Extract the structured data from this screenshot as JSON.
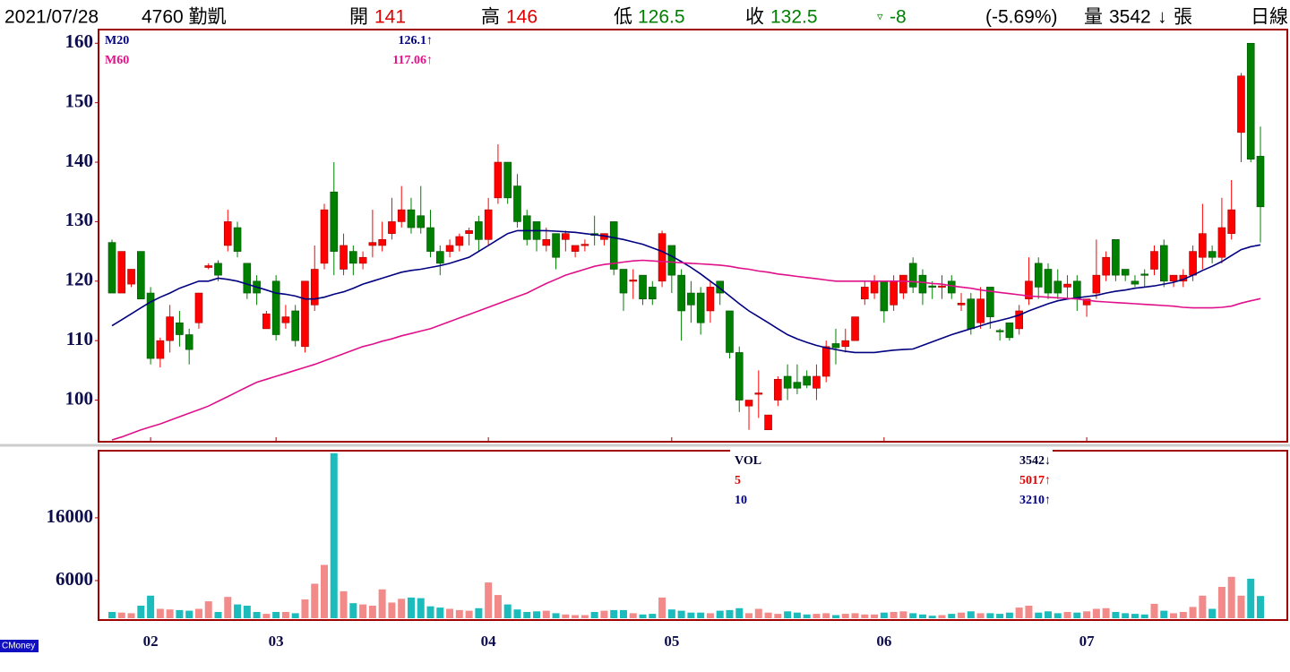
{
  "chart_data": {
    "type": "candlestick",
    "header": {
      "date": "2021/07/28",
      "stock": "4760 勤凱",
      "open_label": "開",
      "open": 141,
      "high_label": "高",
      "high": 146,
      "low_label": "低",
      "low": 126.5,
      "close_label": "收",
      "close": 132.5,
      "change_icon": "▿",
      "change": -8,
      "change_pct": "(-5.69%)",
      "volume_label": "量",
      "volume": 3542,
      "volume_arrow": "↓",
      "volume_unit": "張",
      "period": "日線"
    },
    "categories": [
      null,
      null,
      null,
      null,
      "02",
      null,
      null,
      null,
      null,
      null,
      null,
      null,
      null,
      null,
      null,
      null,
      null,
      "03",
      null,
      null,
      null,
      null,
      null,
      null,
      null,
      null,
      null,
      null,
      null,
      null,
      null,
      null,
      null,
      null,
      null,
      null,
      null,
      null,
      null,
      "04",
      null,
      null,
      null,
      null,
      null,
      null,
      null,
      null,
      null,
      null,
      null,
      null,
      null,
      null,
      null,
      null,
      null,
      null,
      "05",
      null,
      null,
      null,
      null,
      null,
      null,
      null,
      null,
      null,
      null,
      null,
      null,
      null,
      null,
      null,
      null,
      null,
      null,
      null,
      null,
      null,
      "06",
      null,
      null,
      null,
      null,
      null,
      null,
      null,
      null,
      null,
      null,
      null,
      null,
      null,
      null,
      null,
      null,
      null,
      null,
      null,
      null,
      "07",
      null,
      null,
      null,
      null,
      null,
      null,
      null,
      null,
      null,
      null,
      null,
      null,
      null,
      null,
      null,
      null,
      null,
      null
    ],
    "open": [
      126.5,
      118,
      119.5,
      125,
      118,
      107,
      110,
      113,
      111,
      113,
      122.3,
      123,
      126,
      129,
      123,
      120,
      112,
      120,
      113,
      115,
      109,
      116,
      123,
      135,
      122,
      125,
      123,
      126,
      126,
      128,
      130,
      132,
      131,
      129,
      125,
      125,
      126,
      128,
      130,
      127,
      134,
      140,
      136,
      131,
      130,
      126,
      128,
      127,
      125,
      126,
      128,
      127,
      130,
      122,
      120,
      121,
      119,
      120,
      126,
      121,
      118,
      118,
      115,
      120,
      115,
      108,
      99,
      101,
      95,
      100,
      104,
      103,
      104,
      102,
      104,
      109.5,
      109,
      110,
      117,
      118,
      120,
      116,
      118,
      123,
      121,
      119.2,
      119,
      120,
      116,
      117,
      113,
      119,
      111.7,
      113,
      112,
      117,
      123,
      122,
      120,
      119,
      120,
      116,
      118,
      121,
      127,
      122,
      120,
      121.2,
      122,
      126,
      120,
      120,
      121,
      124,
      125,
      124,
      128,
      145,
      160,
      141
    ],
    "high": [
      127,
      125,
      122,
      125,
      119,
      110.5,
      116,
      115,
      112,
      118,
      123,
      123.5,
      132,
      130,
      123,
      121,
      115,
      121,
      116,
      116,
      120,
      126,
      133,
      140,
      128,
      126,
      125,
      132,
      130,
      134,
      136,
      134,
      136,
      132,
      126,
      127,
      128,
      129,
      131,
      134,
      143,
      140,
      138,
      132,
      130,
      129,
      128,
      128.5,
      126,
      127,
      131,
      128,
      130,
      122,
      122,
      121,
      120,
      128.5,
      126,
      122,
      120,
      119,
      120,
      120,
      115,
      109,
      100,
      105,
      97.5,
      104,
      106,
      106,
      105,
      106,
      110,
      112,
      112,
      114,
      120,
      121,
      120,
      121,
      121,
      124,
      122,
      120,
      121,
      121,
      118,
      118,
      119,
      119,
      112,
      113,
      116,
      124,
      124,
      123,
      122,
      121,
      121,
      117,
      127,
      125,
      127,
      122,
      121,
      122,
      126,
      127,
      121,
      122,
      126,
      133,
      126,
      134,
      137,
      155,
      160,
      146
    ],
    "low": [
      118,
      118,
      119,
      117,
      106,
      105.5,
      108,
      109,
      106,
      112,
      122,
      120,
      125,
      124,
      117,
      116,
      112,
      110,
      112,
      109,
      108,
      115,
      122,
      121,
      121,
      121,
      122,
      124,
      125,
      127,
      129,
      128,
      128,
      124,
      121,
      124,
      125,
      126,
      125,
      126,
      133,
      133,
      129,
      126,
      125,
      125,
      122,
      125,
      124,
      125,
      126,
      126,
      121,
      115,
      117,
      116,
      116,
      119,
      118,
      110,
      113,
      111,
      113,
      116,
      107,
      98,
      95,
      97,
      95,
      99,
      100,
      101,
      102,
      100,
      103,
      106,
      108,
      110,
      116,
      117,
      113,
      115,
      117,
      118,
      116,
      117,
      117,
      117,
      115,
      111,
      112,
      112,
      110,
      110,
      111,
      116,
      117,
      117,
      117,
      117,
      115,
      114,
      117,
      120,
      120,
      120,
      119,
      119,
      121,
      119,
      119,
      119,
      120,
      122,
      123,
      123,
      127,
      140,
      140,
      126.5
    ],
    "close": [
      118,
      125,
      122,
      117,
      107,
      110,
      114,
      111,
      108.5,
      118,
      122.6,
      121,
      130,
      125,
      118,
      118,
      114.5,
      111,
      114,
      110,
      120,
      122,
      132,
      125,
      126,
      123,
      124,
      126.5,
      127,
      130,
      132,
      129,
      129,
      125,
      123,
      126,
      127.5,
      128.5,
      127,
      132,
      140,
      134,
      130,
      127,
      127,
      127,
      124,
      128,
      126,
      126.2,
      127.7,
      128,
      122,
      118,
      120.2,
      117,
      117,
      128,
      121,
      115,
      116,
      113,
      119,
      118,
      108,
      100,
      100,
      101.2,
      97.5,
      103.5,
      102,
      102,
      102.5,
      104,
      109,
      108.8,
      110,
      114,
      119,
      120,
      115,
      120,
      121,
      119,
      118,
      119,
      119.2,
      118,
      116.3,
      112,
      117,
      114,
      111.5,
      110.5,
      115,
      120,
      119,
      118,
      118,
      119.5,
      117,
      117,
      121,
      124,
      121,
      121,
      119.5,
      121,
      125,
      120,
      121,
      121,
      125,
      128,
      124,
      129,
      132,
      154.5,
      140.5,
      132.5
    ],
    "up_color": "#ff0000",
    "down_color": "#008000",
    "ylim": [
      93,
      162.3
    ],
    "yticks": [
      100,
      110,
      120,
      130,
      140,
      150,
      160
    ],
    "series": [
      {
        "name": "M20",
        "color": "#000080",
        "label": "126.1↑",
        "values": [
          112.5,
          113.5,
          114.5,
          115.5,
          116.5,
          117.3,
          118,
          118.8,
          119.4,
          120,
          120,
          120.5,
          120.3,
          120,
          119.5,
          119,
          118.5,
          118,
          117.8,
          117.5,
          117,
          117,
          117.3,
          117.8,
          118.2,
          118.8,
          119.5,
          120,
          120.5,
          121,
          121.5,
          121.8,
          122,
          122.3,
          122.6,
          123,
          123.5,
          124,
          125,
          126,
          127,
          128,
          128.5,
          128.5,
          128.5,
          128.5,
          128.4,
          128.3,
          128.2,
          128,
          127.8,
          127.6,
          127.3,
          127,
          126.6,
          126.2,
          125.6,
          125,
          124.2,
          123.3,
          122.3,
          121.2,
          120,
          118.8,
          117.5,
          116.2,
          115,
          114,
          113,
          112,
          111,
          110.3,
          109.7,
          109.2,
          108.8,
          108.5,
          108.2,
          108,
          108,
          108,
          108.2,
          108.4,
          108.5,
          108.6,
          109.2,
          109.8,
          110.4,
          111,
          111.5,
          112,
          112.5,
          113,
          113.4,
          113.8,
          114.3,
          115,
          115.6,
          116.2,
          116.7,
          117,
          117.2,
          117.4,
          117.6,
          118,
          118.3,
          118.5,
          118.8,
          119,
          119.2,
          119.5,
          119.8,
          120.3,
          121,
          121.8,
          122.5,
          123.3,
          124.3,
          125.3,
          125.8,
          126.1
        ]
      },
      {
        "name": "M60",
        "color": "#e0108a",
        "label": "117.06↑",
        "values": [
          93.3,
          93.8,
          94.4,
          95,
          95.5,
          96,
          96.6,
          97.2,
          97.8,
          98.4,
          99,
          99.8,
          100.6,
          101.4,
          102.2,
          103,
          103.5,
          104,
          104.5,
          105,
          105.5,
          106,
          106.6,
          107.2,
          107.8,
          108.4,
          109,
          109.4,
          109.9,
          110.3,
          110.8,
          111.2,
          111.6,
          112,
          112.6,
          113.2,
          113.8,
          114.4,
          115,
          115.6,
          116.2,
          116.8,
          117.4,
          118,
          118.8,
          119.6,
          120.3,
          121,
          121.5,
          122,
          122.5,
          122.8,
          123,
          123.2,
          123.4,
          123.5,
          123.4,
          123.3,
          123.2,
          123.1,
          123,
          122.9,
          122.8,
          122.7,
          122.5,
          122.2,
          122,
          121.7,
          121.5,
          121.2,
          121,
          120.8,
          120.6,
          120.4,
          120.2,
          120,
          120,
          120,
          120,
          120,
          120,
          120,
          120,
          119.9,
          119.8,
          119.6,
          119.5,
          119.2,
          119,
          118.8,
          118.5,
          118.3,
          118.1,
          117.9,
          117.7,
          117.5,
          117.4,
          117.3,
          117.2,
          117.1,
          117,
          116.8,
          116.6,
          116.5,
          116.4,
          116.3,
          116.2,
          116.1,
          116,
          115.9,
          115.8,
          115.6,
          115.5,
          115.5,
          115.5,
          115.6,
          115.8,
          116.3,
          116.7,
          117.06
        ]
      }
    ],
    "volume": {
      "values": [
        1000,
        900,
        800,
        2000,
        3600,
        1500,
        1400,
        1300,
        1200,
        1500,
        2700,
        1000,
        3400,
        2200,
        2000,
        1000,
        700,
        1000,
        1000,
        800,
        3000,
        5500,
        8500,
        26300,
        4300,
        2400,
        2200,
        2000,
        4600,
        2500,
        3100,
        3300,
        3200,
        1900,
        1700,
        1500,
        1300,
        1200,
        1600,
        5700,
        3700,
        2200,
        1400,
        1000,
        1100,
        1200,
        800,
        600,
        500,
        500,
        1000,
        1200,
        1300,
        1300,
        800,
        600,
        700,
        3300,
        1400,
        1200,
        900,
        900,
        800,
        1200,
        1300,
        1600,
        800,
        1500,
        900,
        700,
        1100,
        900,
        600,
        700,
        800,
        500,
        700,
        800,
        600,
        600,
        900,
        1000,
        1100,
        800,
        600,
        400,
        500,
        700,
        900,
        1100,
        800,
        800,
        700,
        900,
        1700,
        2000,
        900,
        1100,
        800,
        1000,
        900,
        1100,
        1500,
        1600,
        1000,
        800,
        700,
        600,
        2300,
        1200,
        800,
        1000,
        1800,
        3600,
        1500,
        5000,
        6600,
        3600,
        6300,
        3542
      ],
      "up_color": "#f28a8a",
      "down_color": "#1cbcbc",
      "ylim": [
        0,
        26700
      ],
      "yticks": [
        6000,
        16000
      ],
      "legend": [
        {
          "name": "VOL",
          "label": "3542↓",
          "color": "#000033"
        },
        {
          "name": "5",
          "label": "5017↑",
          "color": "#e00000"
        },
        {
          "name": "10",
          "label": "3210↑",
          "color": "#000080"
        }
      ]
    },
    "source": "CMoney"
  }
}
